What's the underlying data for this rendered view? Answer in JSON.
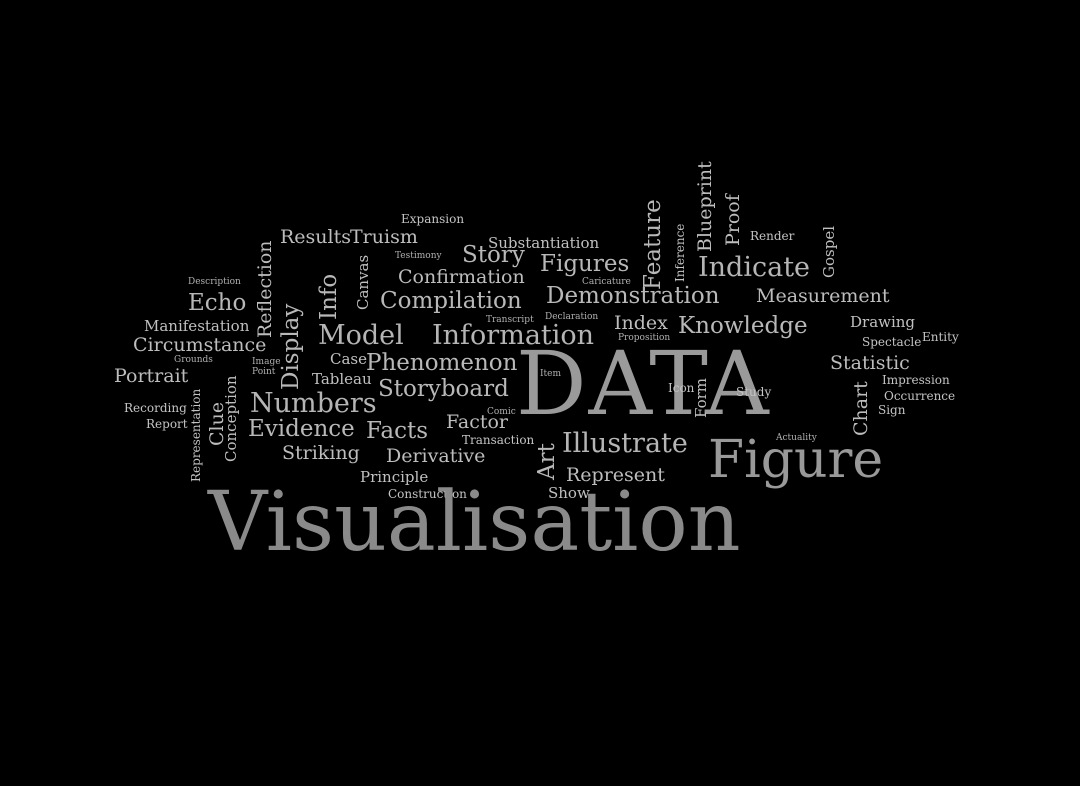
{
  "words": {
    "expansion": "Expansion",
    "results": "Results",
    "truism": "Truism",
    "substantiation": "Substantiation",
    "testimony": "Testimony",
    "story": "Story",
    "figures": "Figures",
    "caricature": "Caricature",
    "confirmation": "Confirmation",
    "description": "Description",
    "reflection": "Reflection",
    "canvas": "Canvas",
    "info": "Info",
    "display": "Display",
    "compilation": "Compilation",
    "demonstration": "Demonstration",
    "measurement": "Measurement",
    "feature": "Feature",
    "inference": "Inference",
    "blueprint": "Blueprint",
    "proof": "Proof",
    "render": "Render",
    "gospel": "Gospel",
    "indicate": "Indicate",
    "echo": "Echo",
    "manifestation": "Manifestation",
    "circumstance": "Circumstance",
    "model": "Model",
    "information": "Information",
    "transcript": "Transcript",
    "declaration": "Declaration",
    "index": "Index",
    "knowledge": "Knowledge",
    "drawing": "Drawing",
    "entity": "Entity",
    "proposition": "Proposition",
    "spectacle": "Spectacle",
    "portrait": "Portrait",
    "grounds": "Grounds",
    "image": "Image",
    "point": "Point",
    "case": "Case",
    "phenomenon": "Phenomenon",
    "data": "DATA",
    "statistic": "Statistic",
    "impression": "Impression",
    "occurrence": "Occurrence",
    "sign": "Sign",
    "chart": "Chart",
    "tableau": "Tableau",
    "clue": "Clue",
    "numbers": "Numbers",
    "storyboard": "Storyboard",
    "item": "Item",
    "icon": "Icon",
    "form": "Form",
    "study": "Study",
    "recording": "Recording",
    "report": "Report",
    "representation": "Representation",
    "conception": "Conception",
    "evidence": "Evidence",
    "facts": "Facts",
    "factor": "Factor",
    "comic": "Comic",
    "transaction": "Transaction",
    "illustrate": "Illustrate",
    "art": "Art",
    "actuality": "Actuality",
    "figure": "Figure",
    "striking": "Striking",
    "derivative": "Derivative",
    "principle": "Principle",
    "represent": "Represent",
    "construction": "Construction",
    "show": "Show",
    "visualisation": "Visualisation"
  }
}
